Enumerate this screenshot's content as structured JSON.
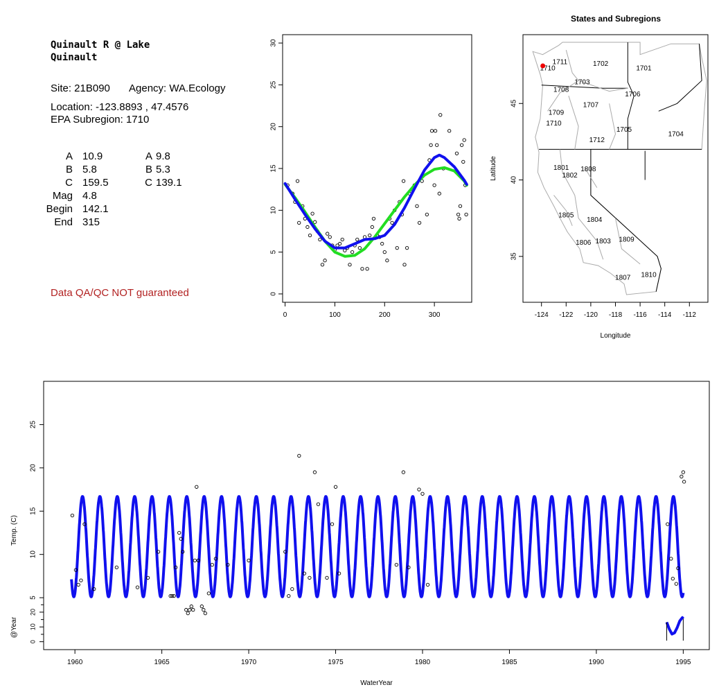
{
  "station": {
    "title_line1": "Quinault R @ Lake",
    "title_line2": "Quinault",
    "site_label": "Site: 21B090",
    "agency_label": "Agency: WA.Ecology",
    "location_label": "Location: -123.8893 , 47.4576",
    "subregion_label": "EPA Subregion: 1710",
    "warning": "Data QA/QC NOT guaranteed"
  },
  "params": {
    "left": [
      {
        "name": "A",
        "value": "10.9"
      },
      {
        "name": "B",
        "value": "5.8"
      },
      {
        "name": "C",
        "value": "159.5"
      },
      {
        "name": "Mag",
        "value": "4.8"
      },
      {
        "name": "Begin",
        "value": "142.1"
      },
      {
        "name": "End",
        "value": "315"
      }
    ],
    "right": [
      {
        "name": "A",
        "value": "9.8"
      },
      {
        "name": "B",
        "value": "5.3"
      },
      {
        "name": "C",
        "value": "139.1"
      }
    ]
  },
  "colors": {
    "fit_blue": "#1010ee",
    "fit_green": "#22dd22",
    "station_dot": "#ee0000",
    "warning": "#b22222",
    "region_lines": "#aaaaaa"
  },
  "chart_data": [
    {
      "type": "scatter",
      "id": "seasonal",
      "title": "",
      "xlabel": "",
      "ylabel": "",
      "xlim": [
        -5,
        375
      ],
      "ylim": [
        -1,
        31
      ],
      "xticks": [
        "0",
        "100",
        "200",
        "300"
      ],
      "yticks": [
        "0",
        "5",
        "10",
        "15",
        "20",
        "25",
        "30"
      ],
      "points": [
        [
          5,
          13.0
        ],
        [
          15,
          12.0
        ],
        [
          20,
          11.0
        ],
        [
          25,
          13.5
        ],
        [
          28,
          8.5
        ],
        [
          35,
          10.5
        ],
        [
          40,
          9.0
        ],
        [
          45,
          8.0
        ],
        [
          50,
          7.0
        ],
        [
          55,
          9.6
        ],
        [
          60,
          8.6
        ],
        [
          65,
          7.5
        ],
        [
          70,
          6.5
        ],
        [
          75,
          3.5
        ],
        [
          80,
          4.0
        ],
        [
          85,
          7.2
        ],
        [
          90,
          6.8
        ],
        [
          95,
          5.8
        ],
        [
          100,
          5.3
        ],
        [
          105,
          5.8
        ],
        [
          110,
          6.0
        ],
        [
          115,
          6.5
        ],
        [
          120,
          5.2
        ],
        [
          125,
          5.5
        ],
        [
          130,
          3.5
        ],
        [
          135,
          5.0
        ],
        [
          140,
          5.8
        ],
        [
          145,
          6.5
        ],
        [
          150,
          5.5
        ],
        [
          155,
          3.0
        ],
        [
          160,
          6.8
        ],
        [
          165,
          3.0
        ],
        [
          170,
          7.0
        ],
        [
          175,
          8.0
        ],
        [
          178,
          9.0
        ],
        [
          185,
          7.0
        ],
        [
          190,
          6.8
        ],
        [
          195,
          6.0
        ],
        [
          200,
          5.0
        ],
        [
          205,
          4.0
        ],
        [
          210,
          9.0
        ],
        [
          215,
          8.5
        ],
        [
          220,
          10.0
        ],
        [
          225,
          5.5
        ],
        [
          230,
          11.0
        ],
        [
          235,
          9.5
        ],
        [
          238,
          13.5
        ],
        [
          240,
          3.5
        ],
        [
          245,
          5.5
        ],
        [
          250,
          12.0
        ],
        [
          255,
          12.5
        ],
        [
          260,
          13.0
        ],
        [
          265,
          10.5
        ],
        [
          270,
          8.5
        ],
        [
          275,
          13.5
        ],
        [
          285,
          9.5
        ],
        [
          290,
          16.0
        ],
        [
          293,
          17.8
        ],
        [
          295,
          19.5
        ],
        [
          300,
          13.0
        ],
        [
          302,
          19.5
        ],
        [
          305,
          17.8
        ],
        [
          310,
          12.0
        ],
        [
          312,
          21.4
        ],
        [
          318,
          15.0
        ],
        [
          330,
          19.5
        ],
        [
          345,
          16.8
        ],
        [
          348,
          9.5
        ],
        [
          350,
          9.0
        ],
        [
          352,
          10.5
        ],
        [
          355,
          17.8
        ],
        [
          358,
          15.8
        ],
        [
          360,
          18.4
        ],
        [
          362,
          13.0
        ],
        [
          364,
          9.5
        ]
      ],
      "series": [
        {
          "color": "#22dd22",
          "x": [
            0,
            20,
            40,
            60,
            80,
            100,
            120,
            140,
            160,
            180,
            200,
            220,
            240,
            260,
            280,
            300,
            320,
            340,
            360,
            365
          ],
          "y": [
            13.1,
            11.5,
            9.8,
            8.0,
            6.3,
            5.0,
            4.5,
            4.6,
            5.4,
            6.8,
            8.4,
            10.0,
            11.6,
            13.0,
            14.2,
            14.9,
            15.1,
            14.7,
            13.5,
            13.0
          ]
        },
        {
          "color": "#1010ee",
          "x": [
            0,
            20,
            40,
            60,
            80,
            100,
            120,
            140,
            160,
            180,
            200,
            220,
            240,
            260,
            280,
            300,
            310,
            320,
            340,
            360,
            365
          ],
          "y": [
            13.2,
            11.3,
            9.5,
            7.8,
            6.3,
            5.5,
            5.5,
            6.0,
            6.5,
            6.6,
            7.0,
            8.3,
            10.3,
            12.6,
            14.8,
            16.3,
            16.6,
            16.3,
            15.2,
            13.6,
            13.1
          ]
        }
      ]
    },
    {
      "type": "scatter",
      "id": "timeseries",
      "title": "",
      "xlabel": "WaterYear",
      "ylabel": "Temp. (C)",
      "xlim": [
        1958.2,
        1996.5
      ],
      "ylim": [
        -1,
        30
      ],
      "xticks": [
        "1960",
        "1965",
        "1970",
        "1975",
        "1980",
        "1985",
        "1990",
        "1995"
      ],
      "yticks": [
        "5",
        "10",
        "15",
        "20",
        "25"
      ],
      "fit": {
        "A": 10.9,
        "B": 5.8,
        "C": 159.5,
        "x_start": 1959.8,
        "x_end": 1995.0
      },
      "points": [
        [
          1959.85,
          14.5
        ],
        [
          1960.05,
          8.2
        ],
        [
          1960.2,
          6.5
        ],
        [
          1960.35,
          7.0
        ],
        [
          1960.55,
          13.5
        ],
        [
          1961.1,
          6.0
        ],
        [
          1962.4,
          8.5
        ],
        [
          1963.6,
          6.2
        ],
        [
          1964.2,
          7.3
        ],
        [
          1964.8,
          10.3
        ],
        [
          1965.5,
          5.2
        ],
        [
          1965.6,
          5.2
        ],
        [
          1965.7,
          5.2
        ],
        [
          1965.8,
          8.5
        ],
        [
          1966.0,
          12.5
        ],
        [
          1966.1,
          11.8
        ],
        [
          1966.2,
          10.3
        ],
        [
          1966.4,
          3.6
        ],
        [
          1966.5,
          3.2
        ],
        [
          1966.6,
          3.6
        ],
        [
          1966.7,
          4.0
        ],
        [
          1966.8,
          3.6
        ],
        [
          1966.9,
          9.3
        ],
        [
          1967.0,
          17.8
        ],
        [
          1967.1,
          9.3
        ],
        [
          1967.3,
          4.0
        ],
        [
          1967.4,
          3.6
        ],
        [
          1967.5,
          3.2
        ],
        [
          1967.7,
          5.5
        ],
        [
          1967.9,
          8.8
        ],
        [
          1968.1,
          9.5
        ],
        [
          1968.8,
          8.8
        ],
        [
          1970.0,
          9.3
        ],
        [
          1972.1,
          10.3
        ],
        [
          1972.3,
          5.2
        ],
        [
          1972.5,
          6.0
        ],
        [
          1972.9,
          21.4
        ],
        [
          1973.2,
          7.8
        ],
        [
          1973.5,
          7.3
        ],
        [
          1973.8,
          19.5
        ],
        [
          1974.0,
          15.8
        ],
        [
          1974.5,
          7.3
        ],
        [
          1974.8,
          13.5
        ],
        [
          1975.0,
          17.8
        ],
        [
          1975.2,
          7.8
        ],
        [
          1978.5,
          8.8
        ],
        [
          1978.9,
          19.5
        ],
        [
          1979.2,
          8.5
        ],
        [
          1979.8,
          17.5
        ],
        [
          1980.0,
          17.0
        ],
        [
          1980.3,
          6.5
        ],
        [
          1994.1,
          13.5
        ],
        [
          1994.3,
          9.5
        ],
        [
          1994.4,
          7.2
        ],
        [
          1994.6,
          6.6
        ],
        [
          1994.7,
          8.4
        ],
        [
          1994.9,
          19.0
        ],
        [
          1995.0,
          19.5
        ],
        [
          1995.05,
          18.4
        ]
      ]
    },
    {
      "type": "line",
      "id": "annual_curve",
      "ylabel": "@Year",
      "yticks": [
        "0",
        "10",
        "20"
      ],
      "ylim": [
        -3,
        27
      ],
      "x": [
        1994.05,
        1994.2,
        1994.35,
        1994.5,
        1994.65,
        1994.8,
        1994.95,
        1995.0
      ],
      "y": [
        13.2,
        8.5,
        5.2,
        6.0,
        9.5,
        14.0,
        16.3,
        15.5
      ]
    },
    {
      "type": "map",
      "id": "subregion_map",
      "title": "States and Subregions",
      "xlabel": "Longitude",
      "ylabel": "Latitude",
      "xlim": [
        -125.5,
        -110.5
      ],
      "ylim": [
        32,
        49.5
      ],
      "xticks": [
        "-124",
        "-122",
        "-120",
        "-118",
        "-116",
        "-114",
        "-112"
      ],
      "yticks": [
        "35",
        "40",
        "45"
      ],
      "station": {
        "lon": -123.89,
        "lat": 47.46
      },
      "region_labels": [
        {
          "text": "1711",
          "lon": -122.5,
          "lat": 47.7
        },
        {
          "text": "1702",
          "lon": -119.2,
          "lat": 47.6
        },
        {
          "text": "1701",
          "lon": -115.7,
          "lat": 47.3
        },
        {
          "text": "1710",
          "lon": -123.5,
          "lat": 47.3
        },
        {
          "text": "1703",
          "lon": -120.7,
          "lat": 46.4
        },
        {
          "text": "1708",
          "lon": -122.4,
          "lat": 45.9
        },
        {
          "text": "1706",
          "lon": -116.6,
          "lat": 45.6
        },
        {
          "text": "1707",
          "lon": -120.0,
          "lat": 44.9
        },
        {
          "text": "1709",
          "lon": -122.8,
          "lat": 44.4
        },
        {
          "text": "1710",
          "lon": -123.0,
          "lat": 43.7
        },
        {
          "text": "1705",
          "lon": -117.3,
          "lat": 43.3
        },
        {
          "text": "1704",
          "lon": -113.1,
          "lat": 43.0
        },
        {
          "text": "1712",
          "lon": -119.5,
          "lat": 42.6
        },
        {
          "text": "1801",
          "lon": -122.4,
          "lat": 40.8
        },
        {
          "text": "1808",
          "lon": -120.2,
          "lat": 40.7
        },
        {
          "text": "1802",
          "lon": -121.7,
          "lat": 40.3
        },
        {
          "text": "1805",
          "lon": -122.0,
          "lat": 37.7
        },
        {
          "text": "1804",
          "lon": -119.7,
          "lat": 37.4
        },
        {
          "text": "1809",
          "lon": -117.1,
          "lat": 36.1
        },
        {
          "text": "1803",
          "lon": -119.0,
          "lat": 36.0
        },
        {
          "text": "1806",
          "lon": -120.6,
          "lat": 35.9
        },
        {
          "text": "1810",
          "lon": -115.3,
          "lat": 33.8
        },
        {
          "text": "1807",
          "lon": -117.4,
          "lat": 33.6
        }
      ]
    }
  ]
}
